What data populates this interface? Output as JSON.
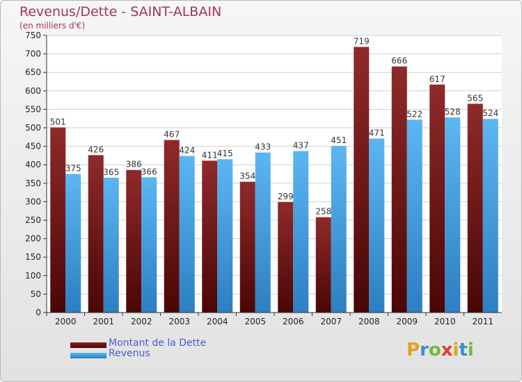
{
  "chart_data": {
    "type": "bar",
    "title": "Revenus/Dette - SAINT-ALBAIN",
    "subtitle": "(en milliers d'€)",
    "categories": [
      "2000",
      "2001",
      "2002",
      "2003",
      "2004",
      "2005",
      "2006",
      "2007",
      "2008",
      "2009",
      "2010",
      "2011"
    ],
    "series": [
      {
        "name": "Montant de la Dette",
        "color": "#8a2020",
        "values": [
          501,
          426,
          386,
          467,
          411,
          354,
          299,
          258,
          719,
          666,
          617,
          565
        ]
      },
      {
        "name": "Revenus",
        "color": "#4aa3e6",
        "values": [
          375,
          365,
          366,
          424,
          415,
          433,
          437,
          451,
          471,
          522,
          528,
          524
        ]
      }
    ],
    "ylim": [
      0,
      750
    ],
    "yticks": [
      0,
      50,
      100,
      150,
      200,
      250,
      300,
      350,
      400,
      450,
      500,
      550,
      600,
      650,
      700,
      750
    ],
    "grid": true,
    "legend": "bottom-left"
  },
  "logo": {
    "letters": [
      "P",
      "r",
      "o",
      "x",
      "i",
      "t",
      "i"
    ],
    "colors": [
      "#e5a21f",
      "#3a8fd0",
      "#6dbb3c",
      "#e23b2e",
      "#e5a21f",
      "#3a8fd0",
      "#6dbb3c"
    ]
  }
}
